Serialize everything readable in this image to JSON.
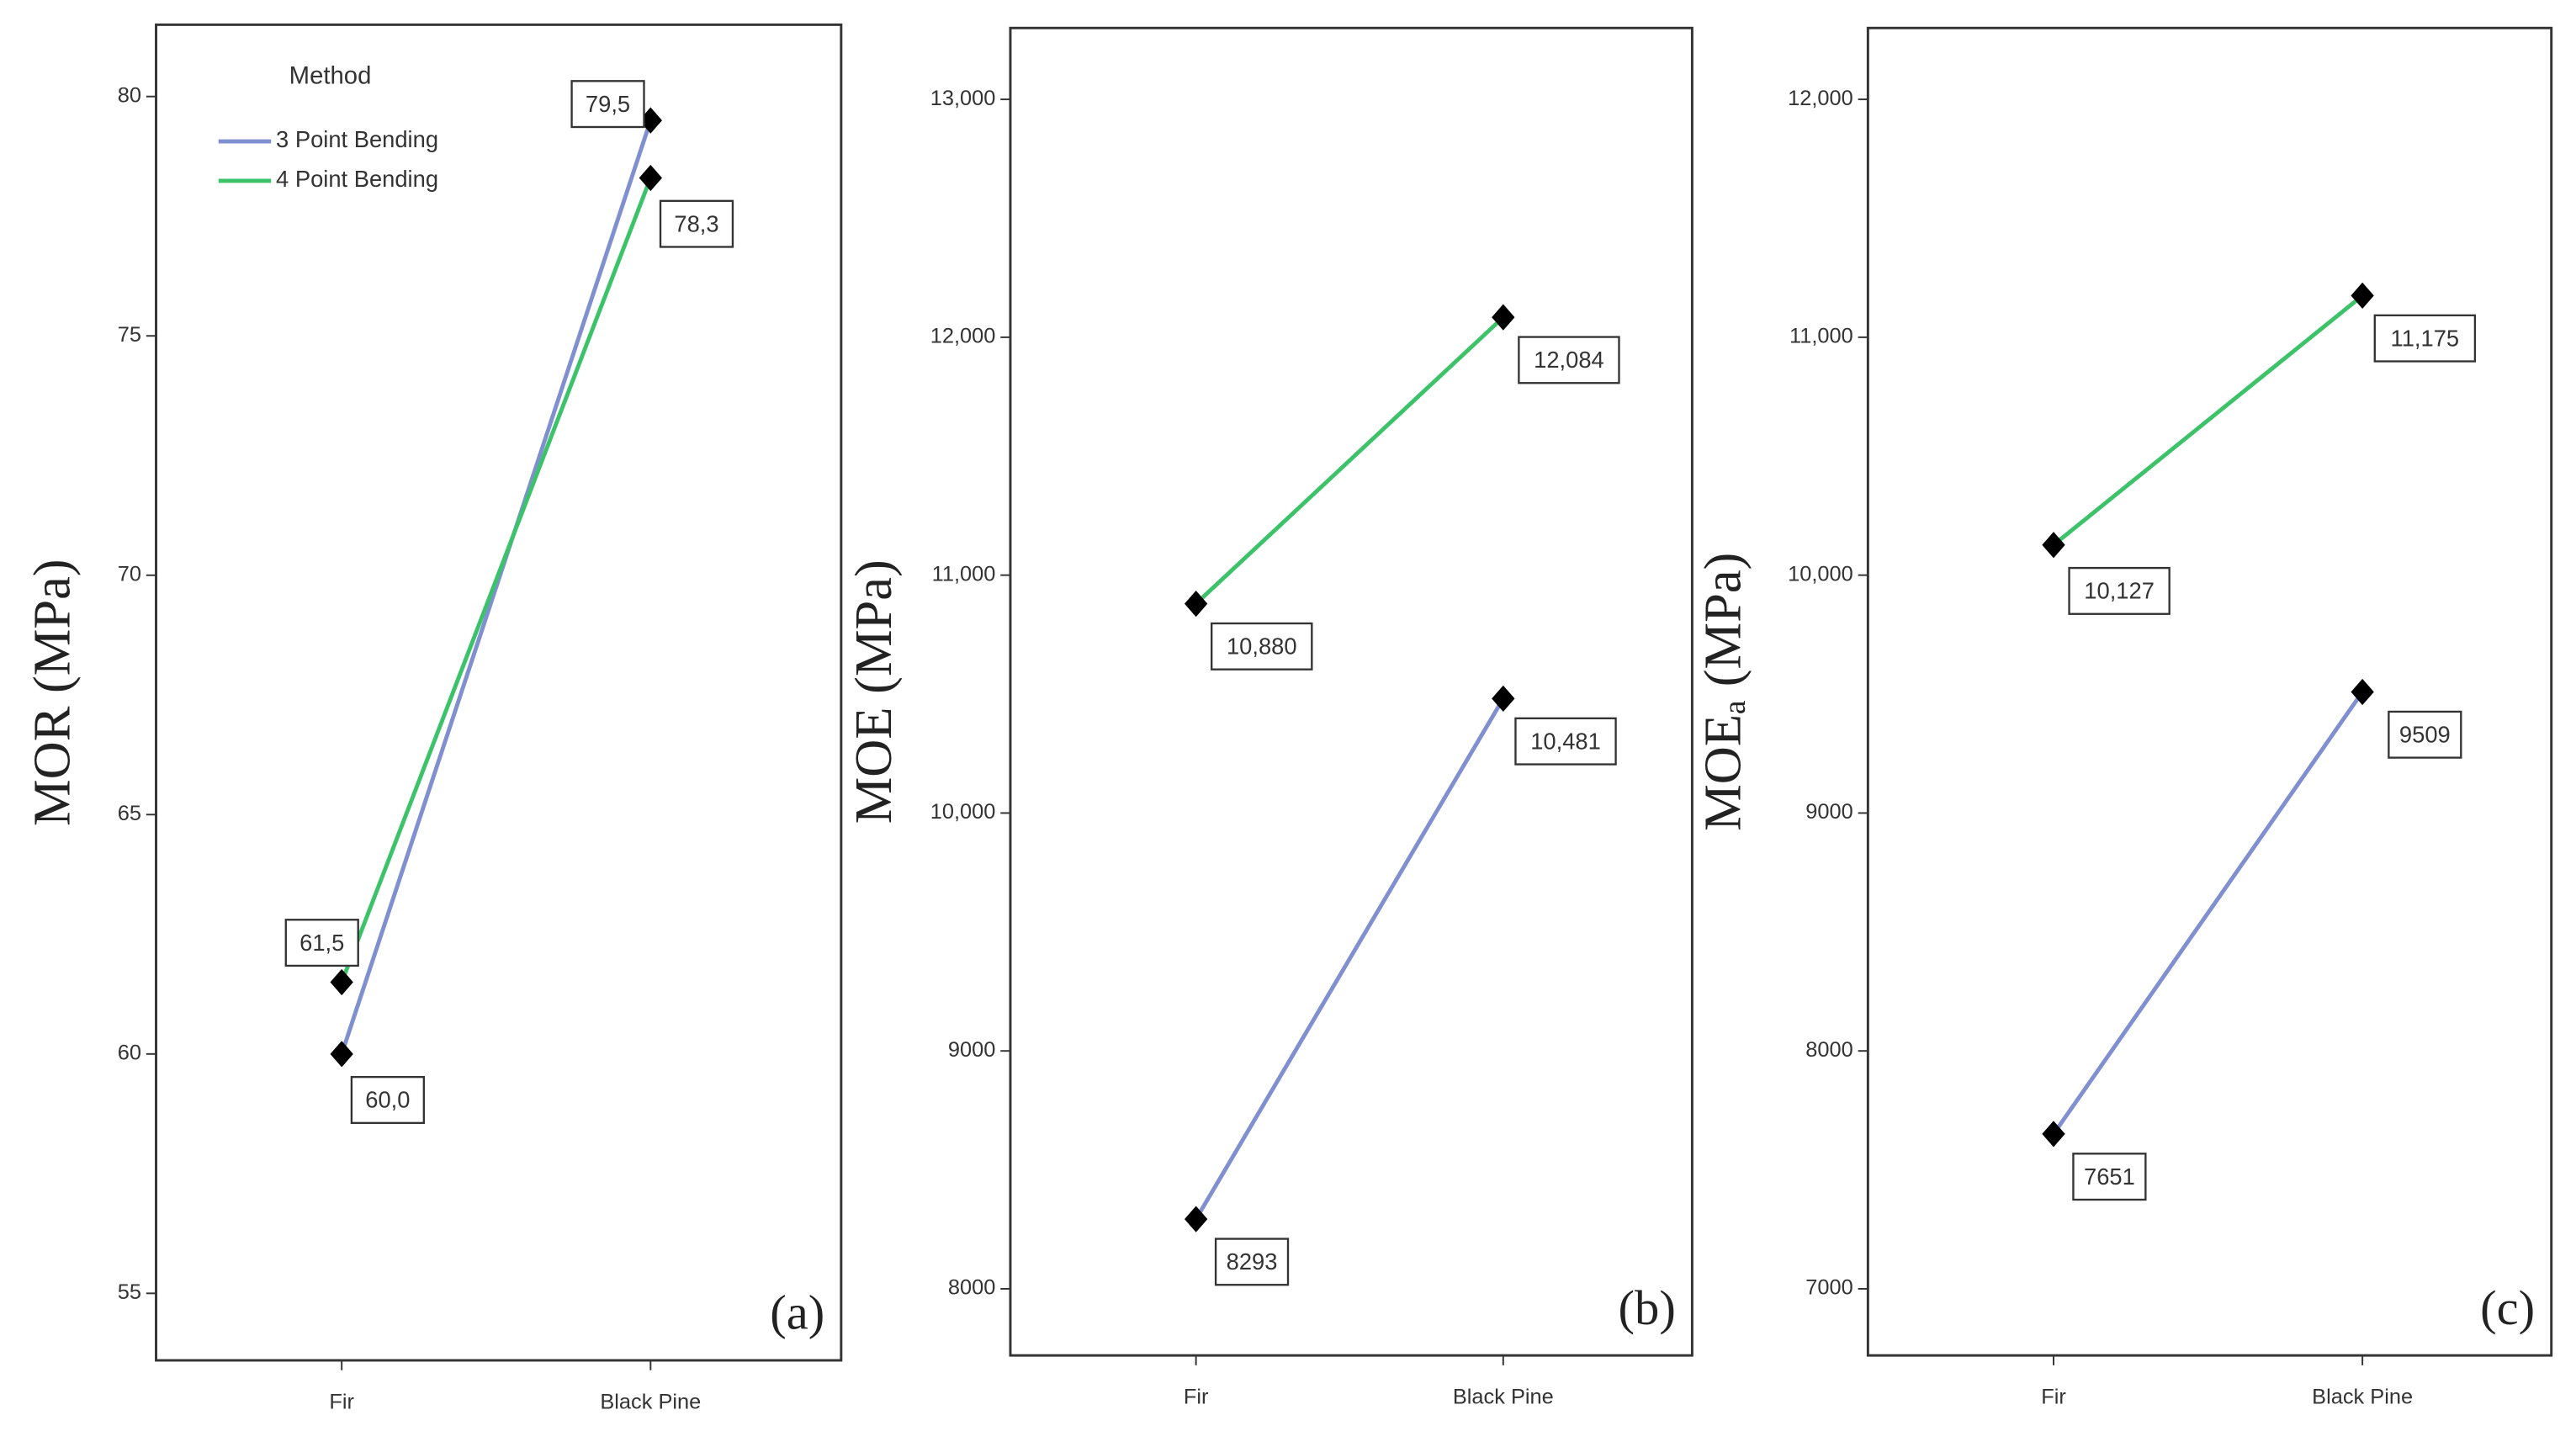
{
  "chart_data": [
    {
      "type": "line",
      "panel_label": "(a)",
      "y_label": "MOR (MPa)",
      "legend_title": "Method",
      "categories": [
        "Fir",
        "Black Pine"
      ],
      "series": [
        {
          "name": "3 Point Bending",
          "color": "#7f8fcf",
          "values": [
            60.0,
            79.5
          ],
          "value_labels": [
            "60,0",
            "79,5"
          ]
        },
        {
          "name": "4 Point Bending",
          "color": "#3cc36a",
          "values": [
            61.5,
            78.3
          ],
          "value_labels": [
            "61,5",
            "78,3"
          ]
        }
      ],
      "ylim": [
        53.6,
        81.5
      ],
      "yticks": [
        55,
        60,
        65,
        70,
        75,
        80
      ]
    },
    {
      "type": "line",
      "panel_label": "(b)",
      "y_label": "MOE (MPa)",
      "categories": [
        "Fir",
        "Black Pine"
      ],
      "series": [
        {
          "color": "#7f8fcf",
          "values": [
            8293,
            10481
          ],
          "value_labels": [
            "8293",
            "10,481"
          ]
        },
        {
          "color": "#3cc36a",
          "values": [
            10880,
            12084
          ],
          "value_labels": [
            "10,880",
            "12,084"
          ]
        }
      ],
      "ylim": [
        7720,
        13300
      ],
      "yticks": [
        8000,
        9000,
        {
          "value": 10000,
          "label": "10,000"
        },
        {
          "value": 11000,
          "label": "11,000"
        },
        {
          "value": 12000,
          "label": "12,000"
        },
        {
          "value": 13000,
          "label": "13,000"
        }
      ]
    },
    {
      "type": "line",
      "panel_label": "(c)",
      "y_label": "MOEₐ (MPa)",
      "categories": [
        "Fir",
        "Black Pine"
      ],
      "series": [
        {
          "color": "#7f8fcf",
          "values": [
            7651,
            9509
          ],
          "value_labels": [
            "7651",
            "9509"
          ]
        },
        {
          "color": "#3cc36a",
          "values": [
            10127,
            11175
          ],
          "value_labels": [
            "10,127",
            "11,175"
          ]
        }
      ],
      "ylim": [
        6720,
        12300
      ],
      "yticks": [
        7000,
        8000,
        9000,
        {
          "value": 10000,
          "label": "10,000"
        },
        {
          "value": 11000,
          "label": "11,000"
        },
        {
          "value": 12000,
          "label": "12,000"
        }
      ]
    }
  ]
}
